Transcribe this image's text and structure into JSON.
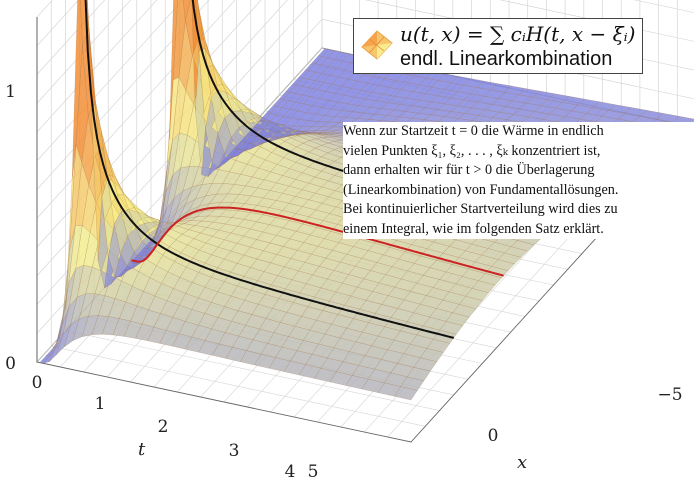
{
  "chart_data": {
    "type": "surface",
    "xlabel": "t",
    "ylabel": "x",
    "x_ticks": [
      "0",
      "1",
      "2",
      "3",
      "4"
    ],
    "y_ticks": [
      "5",
      "0",
      "−5"
    ],
    "z_ticks": [
      "0",
      "1"
    ],
    "xlim": [
      0,
      4
    ],
    "ylim": [
      5,
      -5
    ],
    "zlim": [
      0,
      1
    ],
    "point_sources": [
      {
        "xi": 3.5,
        "c": 1
      },
      {
        "xi": 0,
        "c": 1
      }
    ],
    "highlighted_curves": [
      {
        "x": 3.5,
        "color": "#111111"
      },
      {
        "x": 0,
        "color": "#111111"
      },
      {
        "x": 1.75,
        "color": "#cc2222"
      }
    ],
    "grid": true,
    "colormap": [
      "#7b7fe0",
      "#f5f08a",
      "#f28a2e"
    ],
    "legend": {
      "formula": "u(t, x) = ∑ cᵢH(t, x − ξᵢ)",
      "label": "endl. Linearkombination",
      "placement": "top-right"
    },
    "annotation": [
      "Wenn zur Startzeit t = 0 die Wärme in endlich",
      "vielen Punkten ξ₁, ξ₂, . . . , ξₖ konzentriert ist,",
      "dann erhalten wir für t > 0 die Überlagerung",
      "(Linearkombination) von Fundamentallösungen.",
      "Bei kontinuierlicher Startverteilung wird dies zu",
      "einem Integral, wie im folgenden Satz erklärt."
    ]
  }
}
